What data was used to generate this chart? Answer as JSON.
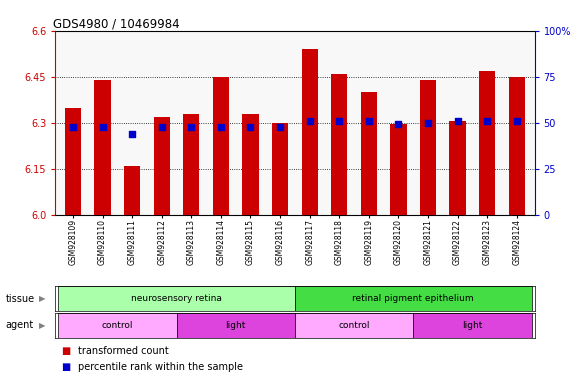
{
  "title": "GDS4980 / 10469984",
  "samples": [
    "GSM928109",
    "GSM928110",
    "GSM928111",
    "GSM928112",
    "GSM928113",
    "GSM928114",
    "GSM928115",
    "GSM928116",
    "GSM928117",
    "GSM928118",
    "GSM928119",
    "GSM928120",
    "GSM928121",
    "GSM928122",
    "GSM928123",
    "GSM928124"
  ],
  "bar_values": [
    6.35,
    6.44,
    6.16,
    6.32,
    6.33,
    6.45,
    6.33,
    6.3,
    6.54,
    6.46,
    6.4,
    6.295,
    6.44,
    6.305,
    6.47,
    6.45
  ],
  "dot_values": [
    6.285,
    6.285,
    6.265,
    6.285,
    6.285,
    6.285,
    6.285,
    6.285,
    6.305,
    6.305,
    6.305,
    6.295,
    6.3,
    6.305,
    6.305,
    6.305
  ],
  "ylim_left": [
    6.0,
    6.6
  ],
  "ylim_right": [
    0,
    100
  ],
  "yticks_left": [
    6.0,
    6.15,
    6.3,
    6.45,
    6.6
  ],
  "yticks_right": [
    0,
    25,
    50,
    75,
    100
  ],
  "bar_color": "#cc0000",
  "dot_color": "#0000cc",
  "tissue_groups": [
    {
      "label": "neurosensory retina",
      "start": 0,
      "end": 8,
      "color": "#aaffaa"
    },
    {
      "label": "retinal pigment epithelium",
      "start": 8,
      "end": 16,
      "color": "#44dd44"
    }
  ],
  "agent_groups": [
    {
      "label": "control",
      "start": 0,
      "end": 4,
      "color": "#ffaaff"
    },
    {
      "label": "light",
      "start": 4,
      "end": 8,
      "color": "#dd44dd"
    },
    {
      "label": "control",
      "start": 8,
      "end": 12,
      "color": "#ffaaff"
    },
    {
      "label": "light",
      "start": 12,
      "end": 16,
      "color": "#dd44dd"
    }
  ],
  "legend_items": [
    {
      "label": "transformed count",
      "color": "#cc0000"
    },
    {
      "label": "percentile rank within the sample",
      "color": "#0000cc"
    }
  ]
}
